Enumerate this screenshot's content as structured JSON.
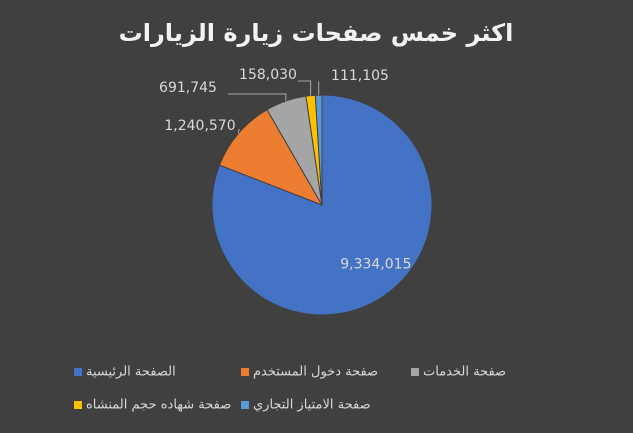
{
  "chart_data": {
    "type": "pie",
    "title": "اكثر خمس صفحات زيارة  الزيارات",
    "categories": [
      "الصفحة الرئيسية",
      "صفحة دخول المستخدم",
      "صفحة  الخدمات",
      "صفحة شهاده حجم المنشاه",
      "صفحة الامتياز التجاري"
    ],
    "values": [
      9334015,
      1240570,
      691745,
      158030,
      111105
    ],
    "value_labels": [
      "9,334,015",
      "1,240,570",
      "691,745",
      "158,030",
      "111,105"
    ],
    "colors": [
      "#4472c4",
      "#ed7d31",
      "#a5a5a5",
      "#ffc000",
      "#5b9bd5"
    ],
    "legend": "bottom"
  }
}
